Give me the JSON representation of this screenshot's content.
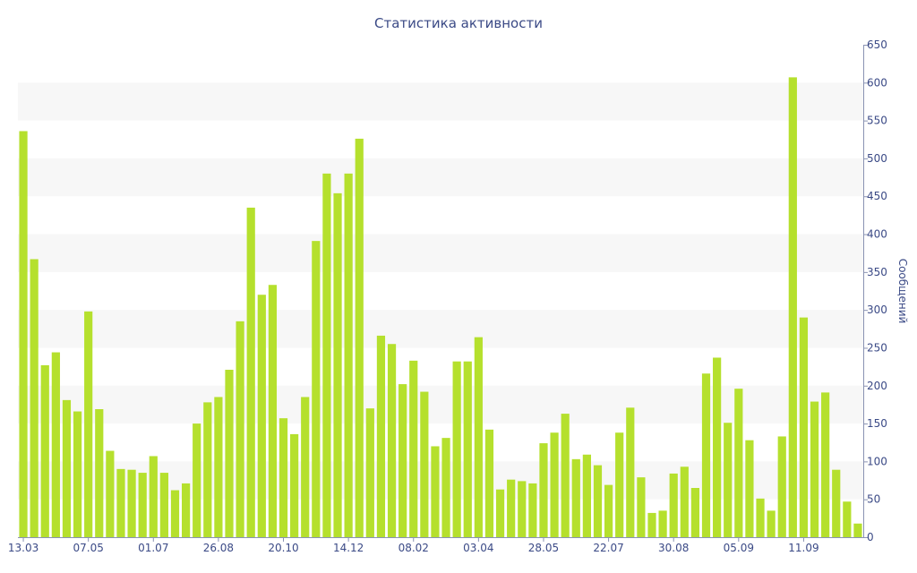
{
  "chart_data": {
    "type": "bar",
    "title": "Статистика активности",
    "xlabel": "",
    "ylabel": "Сообщений",
    "ylim": [
      0,
      650
    ],
    "yticks": [
      0,
      50,
      100,
      150,
      200,
      250,
      300,
      350,
      400,
      450,
      500,
      550,
      600,
      650
    ],
    "y_axis_position": "right",
    "grid": "alternating-bands",
    "bar_color": "#b5e02d",
    "values": [
      536,
      367,
      227,
      244,
      181,
      166,
      298,
      169,
      114,
      90,
      89,
      85,
      107,
      85,
      62,
      71,
      150,
      178,
      185,
      221,
      285,
      435,
      320,
      333,
      157,
      136,
      185,
      391,
      480,
      454,
      480,
      526,
      170,
      266,
      255,
      202,
      233,
      192,
      120,
      131,
      232,
      232,
      264,
      142,
      63,
      76,
      74,
      71,
      124,
      138,
      163,
      103,
      109,
      95,
      69,
      138,
      171,
      79,
      32,
      35,
      84,
      93,
      65,
      216,
      237,
      151,
      196,
      128,
      51,
      35,
      133,
      607,
      290,
      179,
      191,
      89,
      47,
      18
    ],
    "x_tick_labels": [
      {
        "index": 0,
        "label": "13.03"
      },
      {
        "index": 6,
        "label": "07.05"
      },
      {
        "index": 12,
        "label": "01.07"
      },
      {
        "index": 18,
        "label": "26.08"
      },
      {
        "index": 24,
        "label": "20.10"
      },
      {
        "index": 30,
        "label": "14.12"
      },
      {
        "index": 36,
        "label": "08.02"
      },
      {
        "index": 42,
        "label": "03.04"
      },
      {
        "index": 48,
        "label": "28.05"
      },
      {
        "index": 54,
        "label": "22.07"
      },
      {
        "index": 60,
        "label": "30.08"
      },
      {
        "index": 66,
        "label": "05.09"
      },
      {
        "index": 72,
        "label": "11.09"
      }
    ]
  }
}
